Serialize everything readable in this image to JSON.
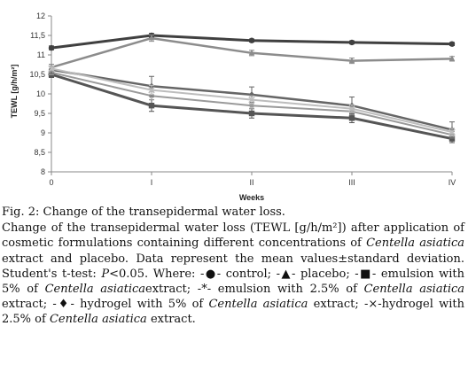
{
  "chart_data": {
    "type": "line",
    "xlabel": "Weeks",
    "ylabel": "TEWL [g/h/m²]",
    "categories": [
      "0",
      "I",
      "II",
      "III",
      "IV"
    ],
    "ylim": [
      8,
      12
    ],
    "yticks": [
      "8",
      "8,5",
      "9",
      "9,5",
      "10",
      "10,5",
      "11",
      "11,5",
      "12"
    ],
    "ytick_values": [
      8,
      8.5,
      9,
      9.5,
      10,
      10.5,
      11,
      11.5,
      12
    ],
    "grid": false,
    "legend": "none",
    "series": [
      {
        "values": [
          11.18,
          11.5,
          11.37,
          11.32,
          11.28
        ],
        "errors": [
          0.05,
          0.05,
          0.04,
          0.04,
          0.04
        ],
        "color": "#404040",
        "marker": "circle",
        "width": 3
      },
      {
        "values": [
          10.68,
          11.43,
          11.05,
          10.85,
          10.9
        ],
        "errors": [
          0.08,
          0.08,
          0.07,
          0.07,
          0.06
        ],
        "color": "#8c8c8c",
        "marker": "triangle",
        "width": 2.5
      },
      {
        "values": [
          10.5,
          9.7,
          9.5,
          9.38,
          8.85
        ],
        "errors": [
          0.08,
          0.15,
          0.12,
          0.12,
          0.1
        ],
        "color": "#555555",
        "marker": "square",
        "width": 3
      },
      {
        "values": [
          10.55,
          9.95,
          9.7,
          9.55,
          8.95
        ],
        "errors": [
          0.06,
          0.1,
          0.08,
          0.08,
          0.08
        ],
        "color": "#9a9a9a",
        "marker": "star",
        "width": 2
      },
      {
        "values": [
          10.62,
          10.2,
          9.98,
          9.7,
          9.08
        ],
        "errors": [
          0.1,
          0.25,
          0.2,
          0.22,
          0.2
        ],
        "color": "#666666",
        "marker": "diamond",
        "width": 2.5
      },
      {
        "values": [
          10.65,
          10.1,
          9.85,
          9.62,
          9.02
        ],
        "errors": [
          0.06,
          0.12,
          0.1,
          0.1,
          0.1
        ],
        "color": "#bdbdbd",
        "marker": "cross",
        "width": 2
      }
    ]
  },
  "caption": {
    "heading": "Fig. 2: Change of the transepidermal water loss.",
    "body": [
      {
        "t": "Change of the transepidermal water loss (TEWL [g/h/m²]) after application of cosmetic formulations containing different concentrations of ",
        "i": false
      },
      {
        "t": "Centella asiatica",
        "i": true
      },
      {
        "t": " extract and placebo. Data represent the mean values±standard deviation. Student's t-test: ",
        "i": false
      },
      {
        "t": "P",
        "i": true
      },
      {
        "t": "<0.05. Where: -●- control; -▲- placebo; -■- emulsion with 5% of ",
        "i": false
      },
      {
        "t": "Centella asiatica",
        "i": true
      },
      {
        "t": "extract; -*- emulsion with 2.5% of ",
        "i": false
      },
      {
        "t": "Centella asiatica",
        "i": true
      },
      {
        "t": " extract; -♦- hydrogel with 5% of ",
        "i": false
      },
      {
        "t": "Centella asiatica",
        "i": true
      },
      {
        "t": " extract; -×-hydrogel with 2.5% of ",
        "i": false
      },
      {
        "t": "Centella asiatica",
        "i": true
      },
      {
        "t": " extract.",
        "i": false
      }
    ]
  }
}
